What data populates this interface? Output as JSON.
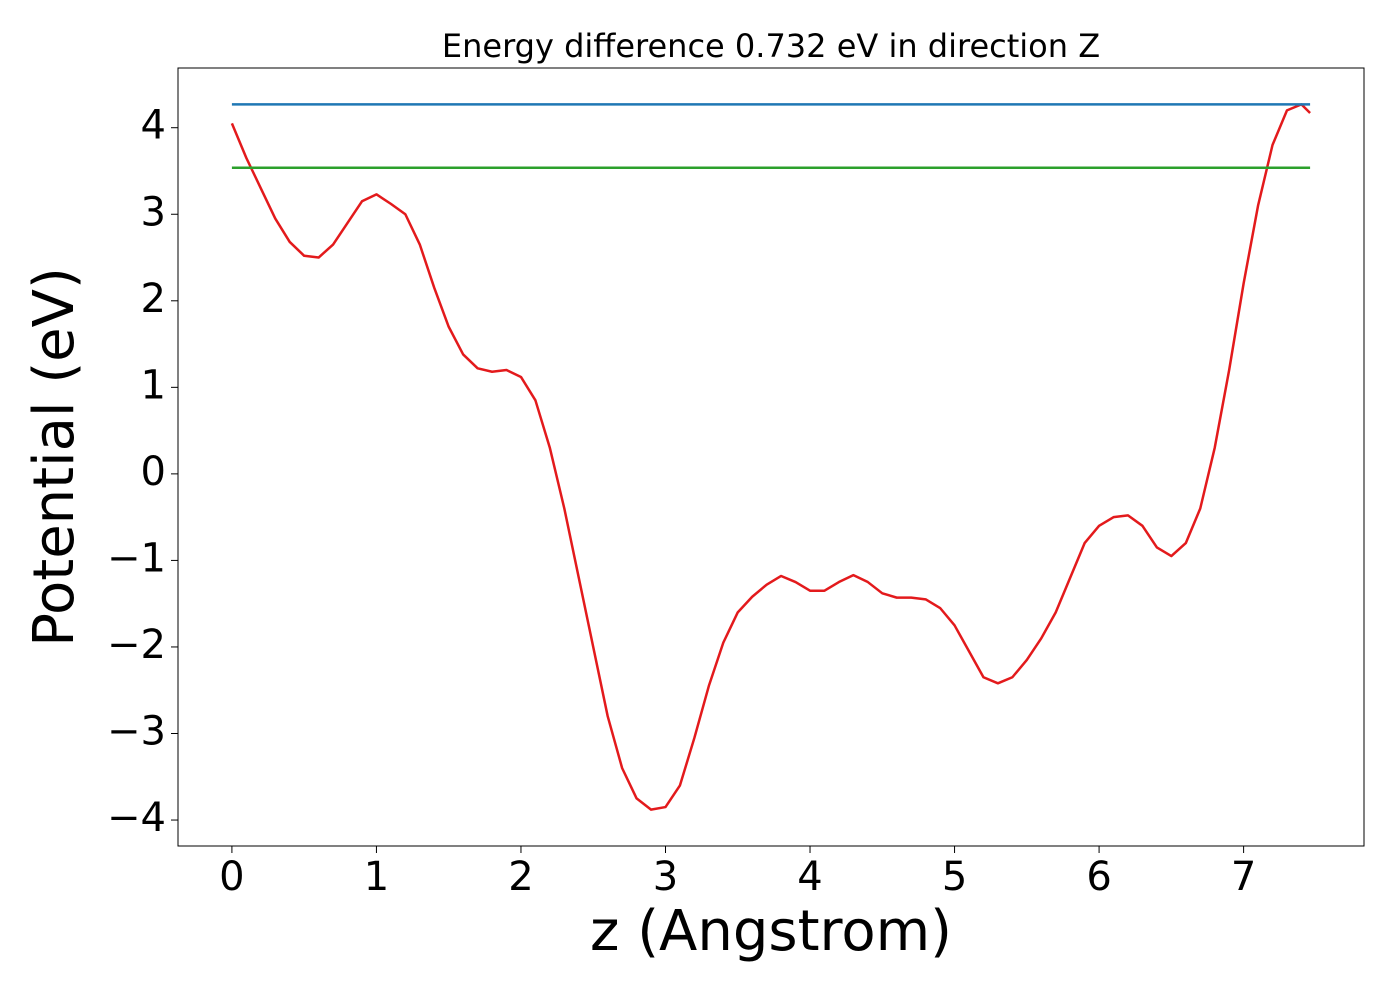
{
  "chart_data": {
    "type": "line",
    "title": "Energy difference 0.732 eV in direction Z",
    "x_label": "z (Angstrom)",
    "y_label": "Potential (eV)",
    "xlim": [
      -0.373,
      7.833
    ],
    "ylim": [
      -4.3,
      4.69
    ],
    "xticks": [
      0,
      1,
      2,
      3,
      4,
      5,
      6,
      7
    ],
    "yticks": [
      {
        "value": -4,
        "label": "−4"
      },
      {
        "value": -3,
        "label": "−3"
      },
      {
        "value": -2,
        "label": "−2"
      },
      {
        "value": -1,
        "label": "−1"
      },
      0,
      1,
      2,
      3,
      4
    ],
    "grid": false,
    "series": [
      {
        "color": "#e31a1c",
        "x": [
          0,
          0.1,
          0.2,
          0.3,
          0.4,
          0.5,
          0.6,
          0.7,
          0.8,
          0.9,
          1.0,
          1.1,
          1.2,
          1.3,
          1.4,
          1.5,
          1.6,
          1.7,
          1.8,
          1.9,
          2.0,
          2.1,
          2.2,
          2.3,
          2.4,
          2.5,
          2.6,
          2.7,
          2.8,
          2.9,
          3.0,
          3.1,
          3.2,
          3.3,
          3.4,
          3.5,
          3.6,
          3.7,
          3.8,
          3.9,
          4.0,
          4.1,
          4.2,
          4.3,
          4.4,
          4.5,
          4.6,
          4.7,
          4.8,
          4.9,
          5.0,
          5.1,
          5.2,
          5.3,
          5.4,
          5.5,
          5.6,
          5.7,
          5.8,
          5.9,
          6.0,
          6.1,
          6.2,
          6.3,
          6.4,
          6.5,
          6.6,
          6.7,
          6.8,
          6.9,
          7.0,
          7.1,
          7.2,
          7.3,
          7.4,
          7.46
        ],
        "values": [
          4.05,
          3.65,
          3.3,
          2.95,
          2.68,
          2.52,
          2.5,
          2.65,
          2.9,
          3.15,
          3.23,
          3.12,
          3.0,
          2.65,
          2.15,
          1.7,
          1.38,
          1.22,
          1.18,
          1.2,
          1.12,
          0.85,
          0.3,
          -0.4,
          -1.2,
          -2.0,
          -2.8,
          -3.4,
          -3.75,
          -3.88,
          -3.85,
          -3.6,
          -3.05,
          -2.45,
          -1.95,
          -1.6,
          -1.42,
          -1.28,
          -1.18,
          -1.25,
          -1.35,
          -1.35,
          -1.25,
          -1.17,
          -1.25,
          -1.38,
          -1.43,
          -1.43,
          -1.45,
          -1.55,
          -1.75,
          -2.05,
          -2.35,
          -2.42,
          -2.35,
          -2.15,
          -1.9,
          -1.6,
          -1.2,
          -0.8,
          -0.6,
          -0.5,
          -0.48,
          -0.6,
          -0.85,
          -0.95,
          -0.8,
          -0.4,
          0.3,
          1.2,
          2.2,
          3.1,
          3.8,
          4.2,
          4.27,
          4.17
        ]
      },
      {
        "color": "#1f77b4",
        "x": [
          0,
          7.46
        ],
        "values": [
          4.27,
          4.27
        ]
      },
      {
        "color": "#2ca02c",
        "x": [
          0,
          7.46
        ],
        "values": [
          3.538,
          3.538
        ]
      }
    ]
  }
}
